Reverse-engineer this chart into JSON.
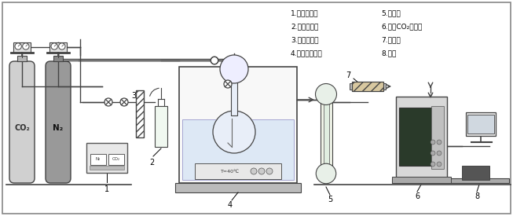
{
  "bg_color": "#ffffff",
  "co2_label": "CO₂",
  "n2_label": "N₂",
  "temp_label": "T=40℃",
  "labels_left": [
    "1.流量控制器",
    "2.水饱和装置",
    "3.气体混合器",
    "4.恒温水浴装置"
  ],
  "labels_right": [
    "5.冷凝器",
    "6.红外CO₂分析仪",
    "7.干燥管",
    "8.电脑"
  ]
}
